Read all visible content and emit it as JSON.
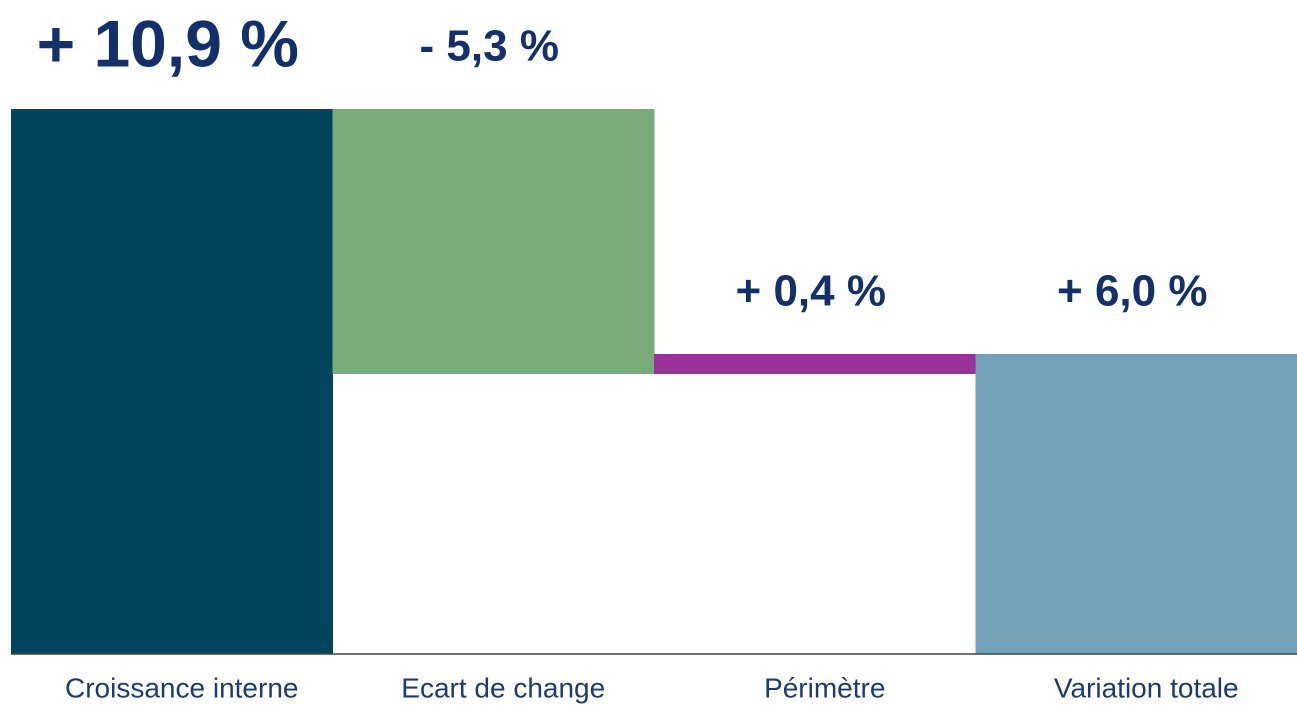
{
  "chart_data": {
    "type": "waterfall",
    "categories": [
      "Croissance interne",
      "Ecart de change",
      "Périmètre",
      "Variation totale"
    ],
    "values": [
      10.9,
      -5.3,
      0.4,
      6.0
    ],
    "value_labels": [
      "+ 10,9 %",
      "- 5,3 %",
      "+ 0,4 %",
      "+ 6,0 %"
    ],
    "is_total": [
      false,
      false,
      false,
      true
    ],
    "colors": [
      "#03455f",
      "#7aab7a",
      "#993399",
      "#72a1b8"
    ]
  }
}
